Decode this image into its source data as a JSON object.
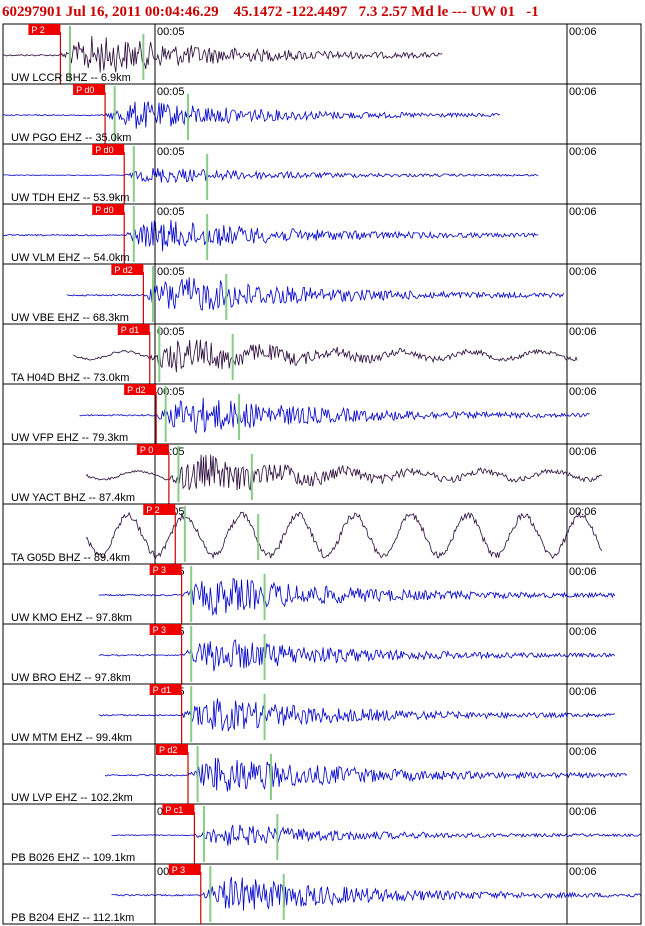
{
  "header": "60297901 Jul 16, 2011 00:04:46.29    45.1472 -122.4497   7.3 2.57 Md le --- UW 01   -1",
  "chart_data": {
    "type": "line",
    "title": "60297901 Jul 16, 2011 00:04:46.29    45.1472 -122.4497   7.3 2.57 Md le --- UW 01   -1",
    "time_ticks": [
      "00:05",
      "00:06"
    ],
    "colors": {
      "header": "#cc0000",
      "trace_blue": "#0000cc",
      "trace_dark": "#2a0a3a",
      "pick_box": "#ee0000",
      "pick_line": "#cc0000",
      "theory_line": "#88cc88"
    },
    "traces": [
      {
        "label": "UW LCCR BHZ -- 6.9km",
        "pick": "P 2",
        "color": "trace_dark",
        "style": "burst",
        "amp": 0.95,
        "pick_t": 0.09,
        "start_t": 0.0,
        "end_t": 0.69
      },
      {
        "label": "UW PGO EHZ -- 35.0km",
        "pick": "P d0",
        "color": "trace_blue",
        "style": "burst",
        "amp": 0.7,
        "pick_t": 0.16,
        "start_t": 0.0,
        "end_t": 0.78
      },
      {
        "label": "UW TDH EHZ -- 53.9km",
        "pick": "P d0",
        "color": "trace_blue",
        "style": "burst",
        "amp": 0.4,
        "pick_t": 0.19,
        "start_t": 0.0,
        "end_t": 0.84
      },
      {
        "label": "UW VLM EHZ -- 54.0km",
        "pick": "P d0",
        "color": "trace_blue",
        "style": "burst",
        "amp": 0.8,
        "pick_t": 0.19,
        "start_t": 0.0,
        "end_t": 0.84
      },
      {
        "label": "UW VBE EHZ -- 68.3km",
        "pick": "P d2",
        "color": "trace_blue",
        "style": "burst",
        "amp": 0.95,
        "pick_t": 0.22,
        "start_t": 0.1,
        "end_t": 0.88
      },
      {
        "label": "TA H04D BHZ -- 73.0km",
        "pick": "P d1",
        "color": "trace_dark",
        "style": "wavy",
        "amp": 0.8,
        "pick_t": 0.23,
        "start_t": 0.11,
        "end_t": 0.9
      },
      {
        "label": "UW VFP EHZ -- 79.3km",
        "pick": "P d2",
        "color": "trace_blue",
        "style": "burst",
        "amp": 0.95,
        "pick_t": 0.24,
        "start_t": 0.12,
        "end_t": 0.92
      },
      {
        "label": "UW YACT BHZ -- 87.4km",
        "pick": "P 0",
        "color": "trace_dark",
        "style": "wavy",
        "amp": 0.9,
        "pick_t": 0.26,
        "start_t": 0.13,
        "end_t": 0.94
      },
      {
        "label": "TA G05D BHZ -- 89.4km",
        "pick": "P 2",
        "color": "trace_dark",
        "style": "bigwave",
        "amp": 1.0,
        "pick_t": 0.27,
        "start_t": 0.13,
        "end_t": 0.94
      },
      {
        "label": "UW KMO EHZ -- 97.8km",
        "pick": "P 3",
        "color": "trace_blue",
        "style": "burst",
        "amp": 0.95,
        "pick_t": 0.28,
        "start_t": 0.15,
        "end_t": 0.96
      },
      {
        "label": "UW BRO EHZ -- 97.8km",
        "pick": "P 3",
        "color": "trace_blue",
        "style": "burst",
        "amp": 0.85,
        "pick_t": 0.28,
        "start_t": 0.15,
        "end_t": 0.96
      },
      {
        "label": "UW MTM EHZ -- 99.4km",
        "pick": "P d1",
        "color": "trace_blue",
        "style": "burst",
        "amp": 0.85,
        "pick_t": 0.28,
        "start_t": 0.15,
        "end_t": 0.96
      },
      {
        "label": "UW LVP EHZ -- 102.2km",
        "pick": "P d2",
        "color": "trace_blue",
        "style": "burst",
        "amp": 0.95,
        "pick_t": 0.29,
        "start_t": 0.16,
        "end_t": 0.98
      },
      {
        "label": "PB B026 EHZ -- 109.1km",
        "pick": "P c1",
        "color": "trace_blue",
        "style": "burst",
        "amp": 0.55,
        "pick_t": 0.3,
        "start_t": 0.17,
        "end_t": 1.0
      },
      {
        "label": "PB B204 EHZ -- 112.1km",
        "pick": "P 3",
        "color": "trace_blue",
        "style": "burst",
        "amp": 0.9,
        "pick_t": 0.31,
        "start_t": 0.17,
        "end_t": 1.0
      }
    ]
  }
}
